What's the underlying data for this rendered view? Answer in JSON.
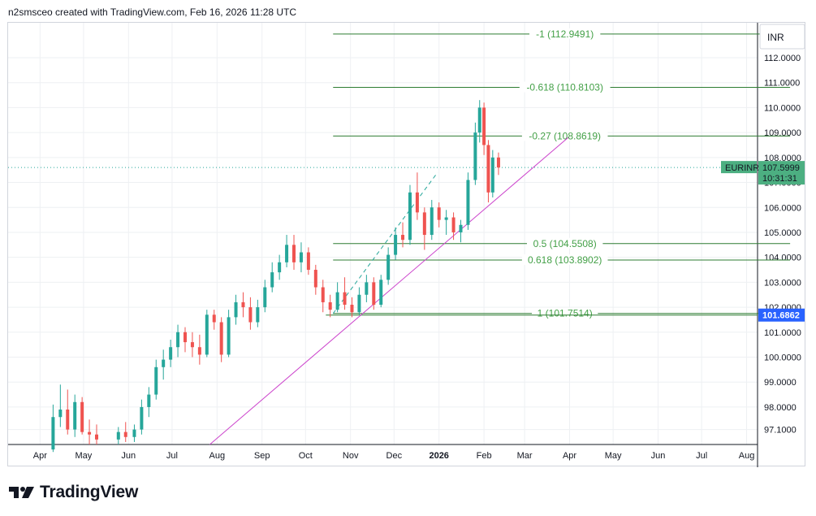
{
  "header": {
    "caption": "n2smsceo created with TradingView.com, Feb 16, 2026 11:28 UTC"
  },
  "footer": {
    "brand": "TradingView"
  },
  "chart_data": {
    "type": "candlestick",
    "symbol": "EURINR",
    "currency_label": "INR",
    "last_price": "107.5999",
    "countdown": "10:31:31",
    "ref_price_label": "101.6862",
    "colors": {
      "up": "#26a69a",
      "down": "#ef5350",
      "fib": "#2e7d32",
      "fib_text": "#43a047",
      "trendline": "#cc44cc",
      "symbol_badge": "#4caf81",
      "ref_badge": "#2962ff",
      "grid": "#eef0f3"
    },
    "y_range": [
      96.5,
      113.4
    ],
    "y_ticks": [
      97.1,
      98.0,
      99.0,
      100.0,
      101.0,
      102.0,
      103.0,
      104.0,
      105.0,
      106.0,
      107.0,
      108.0,
      109.0,
      110.0,
      111.0,
      112.0
    ],
    "y_tick_labels": [
      "97.1000",
      "98.0000",
      "99.0000",
      "100.0000",
      "101.0000",
      "102.0000",
      "103.0000",
      "104.0000",
      "105.0000",
      "106.0000",
      "107.0000",
      "108.0000",
      "109.0000",
      "110.0000",
      "111.0000",
      "112.0000"
    ],
    "x_ticks": [
      "Apr",
      "May",
      "Jun",
      "Jul",
      "Aug",
      "Sep",
      "Oct",
      "Nov",
      "Dec",
      "2026",
      "Feb",
      "Mar",
      "Apr",
      "May",
      "Jun",
      "Jul",
      "Aug"
    ],
    "x_tick_dates": [
      "2025-04-01",
      "2025-05-01",
      "2025-06-01",
      "2025-07-01",
      "2025-08-01",
      "2025-09-01",
      "2025-10-01",
      "2025-11-01",
      "2025-12-01",
      "2026-01-01",
      "2026-02-01",
      "2026-03-01",
      "2026-04-01",
      "2026-05-01",
      "2026-06-01",
      "2026-07-01",
      "2026-08-01"
    ],
    "fib_levels": [
      {
        "label": "-1 (112.9491)",
        "value": 112.9491
      },
      {
        "label": "-0.618 (110.8103)",
        "value": 110.8103
      },
      {
        "label": "-0.27 (108.8619)",
        "value": 108.8619
      },
      {
        "label": "0.5 (104.5508)",
        "value": 104.5508
      },
      {
        "label": "0.618 (103.8902)",
        "value": 103.8902
      },
      {
        "label": "1 (101.7514)",
        "value": 101.7514
      }
    ],
    "fib_range": [
      "2025-10-20",
      "2026-08-31"
    ],
    "trendline": {
      "from": [
        "2025-07-27",
        96.5
      ],
      "to": [
        "2026-03-31",
        108.8
      ]
    },
    "dashed_line": {
      "from": [
        "2025-10-20",
        101.75
      ],
      "to": [
        "2025-12-31",
        107.4
      ]
    },
    "ref_line": {
      "value": 101.6862,
      "from": "2025-10-15"
    },
    "candles": [
      {
        "d": "2025-04-10",
        "o": 96.3,
        "h": 98.1,
        "l": 96.2,
        "c": 97.6
      },
      {
        "d": "2025-04-15",
        "o": 97.6,
        "h": 98.9,
        "l": 97.2,
        "c": 97.9
      },
      {
        "d": "2025-04-20",
        "o": 97.9,
        "h": 98.7,
        "l": 96.9,
        "c": 97.1
      },
      {
        "d": "2025-04-25",
        "o": 97.1,
        "h": 98.5,
        "l": 96.8,
        "c": 98.2
      },
      {
        "d": "2025-04-30",
        "o": 98.2,
        "h": 98.4,
        "l": 96.9,
        "c": 97.0
      },
      {
        "d": "2025-05-05",
        "o": 97.0,
        "h": 97.5,
        "l": 96.5,
        "c": 96.9
      },
      {
        "d": "2025-05-10",
        "o": 96.9,
        "h": 97.3,
        "l": 96.5,
        "c": 96.7
      },
      {
        "d": "2025-05-25",
        "o": 96.7,
        "h": 97.2,
        "l": 96.5,
        "c": 97.0
      },
      {
        "d": "2025-05-30",
        "o": 97.0,
        "h": 97.4,
        "l": 96.6,
        "c": 96.8
      },
      {
        "d": "2025-06-05",
        "o": 96.8,
        "h": 97.3,
        "l": 96.6,
        "c": 97.1
      },
      {
        "d": "2025-06-10",
        "o": 97.1,
        "h": 98.3,
        "l": 96.9,
        "c": 98.0
      },
      {
        "d": "2025-06-15",
        "o": 98.0,
        "h": 98.8,
        "l": 97.6,
        "c": 98.5
      },
      {
        "d": "2025-06-20",
        "o": 98.5,
        "h": 99.9,
        "l": 98.3,
        "c": 99.6
      },
      {
        "d": "2025-06-25",
        "o": 99.6,
        "h": 100.3,
        "l": 99.1,
        "c": 99.9
      },
      {
        "d": "2025-06-30",
        "o": 99.9,
        "h": 100.7,
        "l": 99.6,
        "c": 100.4
      },
      {
        "d": "2025-07-05",
        "o": 100.4,
        "h": 101.3,
        "l": 100.0,
        "c": 101.0
      },
      {
        "d": "2025-07-10",
        "o": 101.0,
        "h": 101.2,
        "l": 100.2,
        "c": 100.6
      },
      {
        "d": "2025-07-15",
        "o": 100.6,
        "h": 101.0,
        "l": 100.0,
        "c": 100.4
      },
      {
        "d": "2025-07-20",
        "o": 100.4,
        "h": 100.9,
        "l": 99.7,
        "c": 100.1
      },
      {
        "d": "2025-07-25",
        "o": 100.1,
        "h": 101.9,
        "l": 100.0,
        "c": 101.7
      },
      {
        "d": "2025-07-30",
        "o": 101.7,
        "h": 101.9,
        "l": 101.1,
        "c": 101.4
      },
      {
        "d": "2025-08-04",
        "o": 101.4,
        "h": 101.6,
        "l": 99.8,
        "c": 100.1
      },
      {
        "d": "2025-08-09",
        "o": 100.1,
        "h": 101.9,
        "l": 100.0,
        "c": 101.6
      },
      {
        "d": "2025-08-14",
        "o": 101.6,
        "h": 102.5,
        "l": 101.3,
        "c": 102.2
      },
      {
        "d": "2025-08-19",
        "o": 102.2,
        "h": 102.6,
        "l": 101.6,
        "c": 102.0
      },
      {
        "d": "2025-08-24",
        "o": 102.0,
        "h": 102.4,
        "l": 101.1,
        "c": 101.4
      },
      {
        "d": "2025-08-29",
        "o": 101.4,
        "h": 102.3,
        "l": 101.2,
        "c": 102.0
      },
      {
        "d": "2025-09-03",
        "o": 102.0,
        "h": 103.1,
        "l": 101.8,
        "c": 102.8
      },
      {
        "d": "2025-09-08",
        "o": 102.8,
        "h": 103.8,
        "l": 102.6,
        "c": 103.4
      },
      {
        "d": "2025-09-13",
        "o": 103.4,
        "h": 104.1,
        "l": 103.1,
        "c": 103.8
      },
      {
        "d": "2025-09-18",
        "o": 103.8,
        "h": 104.9,
        "l": 103.6,
        "c": 104.5
      },
      {
        "d": "2025-09-23",
        "o": 104.5,
        "h": 104.9,
        "l": 103.5,
        "c": 103.8
      },
      {
        "d": "2025-09-28",
        "o": 103.8,
        "h": 104.6,
        "l": 103.4,
        "c": 104.2
      },
      {
        "d": "2025-10-03",
        "o": 104.2,
        "h": 104.4,
        "l": 103.3,
        "c": 103.5
      },
      {
        "d": "2025-10-08",
        "o": 103.5,
        "h": 103.7,
        "l": 102.5,
        "c": 102.8
      },
      {
        "d": "2025-10-13",
        "o": 102.8,
        "h": 103.1,
        "l": 101.8,
        "c": 102.2
      },
      {
        "d": "2025-10-18",
        "o": 102.2,
        "h": 102.5,
        "l": 101.6,
        "c": 101.9
      },
      {
        "d": "2025-10-23",
        "o": 101.9,
        "h": 103.0,
        "l": 101.8,
        "c": 102.6
      },
      {
        "d": "2025-10-28",
        "o": 102.6,
        "h": 103.2,
        "l": 101.9,
        "c": 102.1
      },
      {
        "d": "2025-11-02",
        "o": 102.1,
        "h": 102.4,
        "l": 101.6,
        "c": 101.8
      },
      {
        "d": "2025-11-07",
        "o": 101.8,
        "h": 102.8,
        "l": 101.7,
        "c": 102.5
      },
      {
        "d": "2025-11-12",
        "o": 102.5,
        "h": 103.3,
        "l": 102.2,
        "c": 103.0
      },
      {
        "d": "2025-11-17",
        "o": 103.0,
        "h": 103.2,
        "l": 101.9,
        "c": 102.1
      },
      {
        "d": "2025-11-22",
        "o": 102.1,
        "h": 103.3,
        "l": 102.0,
        "c": 103.1
      },
      {
        "d": "2025-11-27",
        "o": 103.1,
        "h": 104.4,
        "l": 102.9,
        "c": 104.1
      },
      {
        "d": "2025-12-02",
        "o": 104.1,
        "h": 105.2,
        "l": 103.9,
        "c": 104.9
      },
      {
        "d": "2025-12-07",
        "o": 104.9,
        "h": 105.4,
        "l": 104.4,
        "c": 104.7
      },
      {
        "d": "2025-12-12",
        "o": 104.7,
        "h": 106.9,
        "l": 104.5,
        "c": 106.6
      },
      {
        "d": "2025-12-17",
        "o": 106.6,
        "h": 107.4,
        "l": 105.5,
        "c": 105.8
      },
      {
        "d": "2025-12-22",
        "o": 105.8,
        "h": 106.0,
        "l": 104.3,
        "c": 104.9
      },
      {
        "d": "2025-12-27",
        "o": 104.9,
        "h": 106.3,
        "l": 104.7,
        "c": 106.0
      },
      {
        "d": "2026-01-01",
        "o": 106.0,
        "h": 106.2,
        "l": 105.2,
        "c": 105.5
      },
      {
        "d": "2026-01-06",
        "o": 105.5,
        "h": 105.9,
        "l": 104.9,
        "c": 105.6
      },
      {
        "d": "2026-01-11",
        "o": 105.6,
        "h": 105.8,
        "l": 104.7,
        "c": 105.0
      },
      {
        "d": "2026-01-16",
        "o": 105.0,
        "h": 105.5,
        "l": 104.6,
        "c": 105.3
      },
      {
        "d": "2026-01-21",
        "o": 105.3,
        "h": 107.4,
        "l": 105.1,
        "c": 107.1
      },
      {
        "d": "2026-01-26",
        "o": 107.1,
        "h": 109.4,
        "l": 106.9,
        "c": 109.0
      },
      {
        "d": "2026-01-29",
        "o": 109.0,
        "h": 110.3,
        "l": 108.6,
        "c": 110.0
      },
      {
        "d": "2026-02-01",
        "o": 110.0,
        "h": 110.2,
        "l": 108.1,
        "c": 108.5
      },
      {
        "d": "2026-02-04",
        "o": 108.5,
        "h": 108.7,
        "l": 106.2,
        "c": 106.6
      },
      {
        "d": "2026-02-07",
        "o": 106.6,
        "h": 108.3,
        "l": 106.4,
        "c": 108.0
      },
      {
        "d": "2026-02-11",
        "o": 108.0,
        "h": 108.2,
        "l": 107.3,
        "c": 107.6
      }
    ]
  }
}
